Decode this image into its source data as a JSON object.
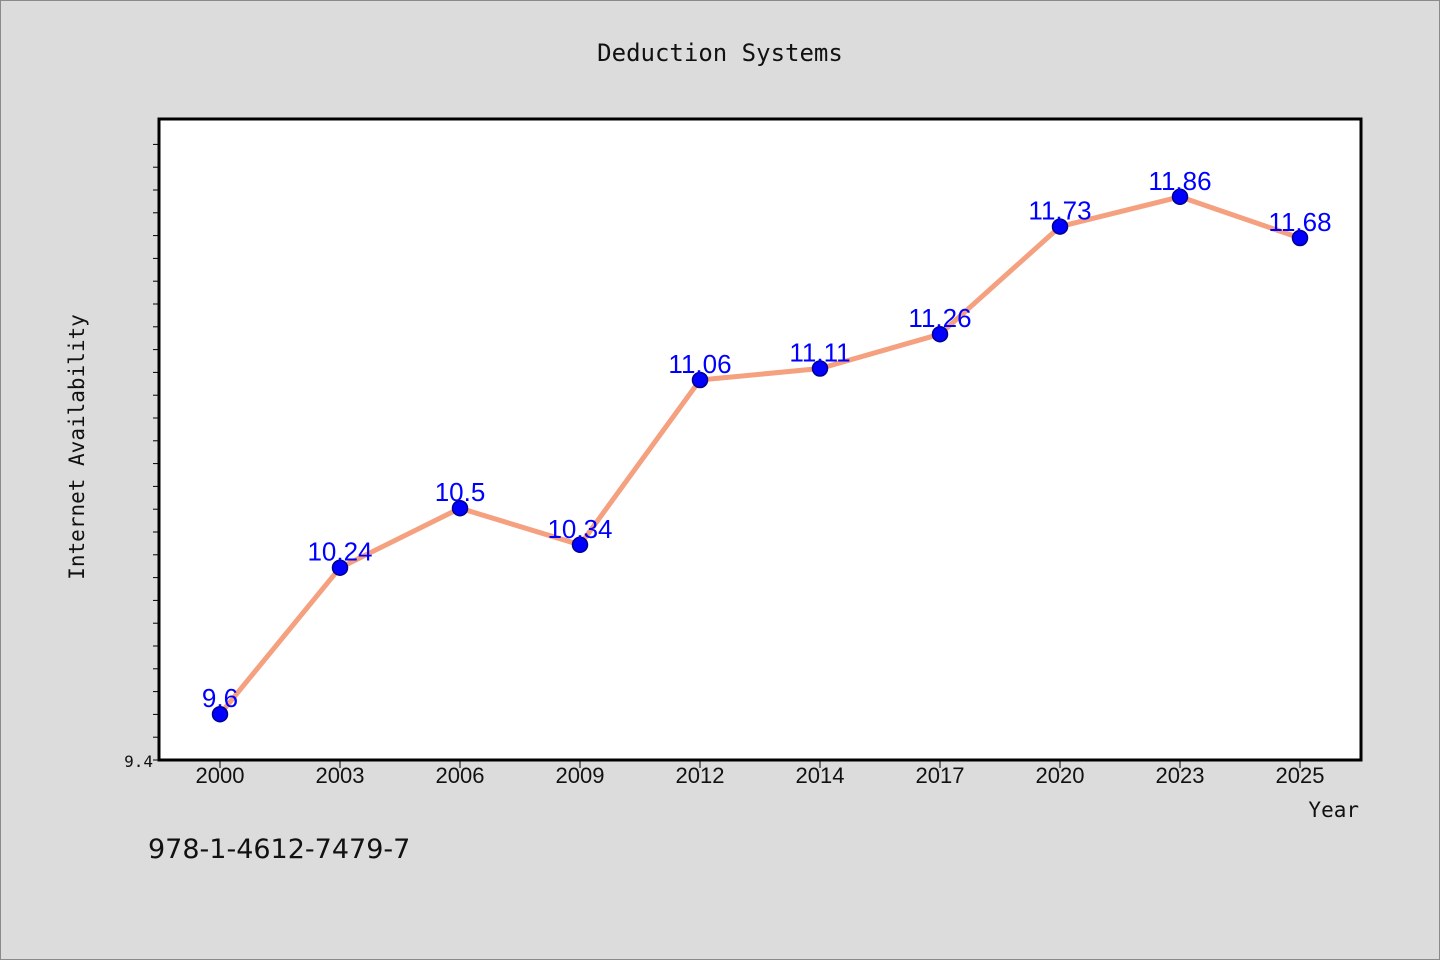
{
  "chart_data": {
    "type": "line",
    "title": "Deduction Systems",
    "xlabel": "Year",
    "ylabel": "Internet Availability",
    "categories": [
      "2000",
      "2003",
      "2006",
      "2009",
      "2012",
      "2014",
      "2017",
      "2020",
      "2023",
      "2025"
    ],
    "series": [
      {
        "values": [
          9.6,
          10.24,
          10.5,
          10.34,
          11.06,
          11.11,
          11.26,
          11.73,
          11.86,
          11.68
        ]
      }
    ],
    "data_labels": [
      "9.6",
      "10.24",
      "10.5",
      "10.34",
      "11.06",
      "11.11",
      "11.26",
      "11.73",
      "11.86",
      "11.68"
    ],
    "y_tick_labels": [
      "9.4"
    ],
    "ylim": [
      9.4,
      12.2
    ],
    "grid": false,
    "colors": {
      "line": "#f5a07f",
      "marker": "#0000ff",
      "marker_edge": "#00008b",
      "label": "#0000ff",
      "plot_bg": "#ffffff",
      "page_bg": "#dcdcdc"
    }
  },
  "footer": {
    "isbn": "978-1-4612-7479-7"
  }
}
